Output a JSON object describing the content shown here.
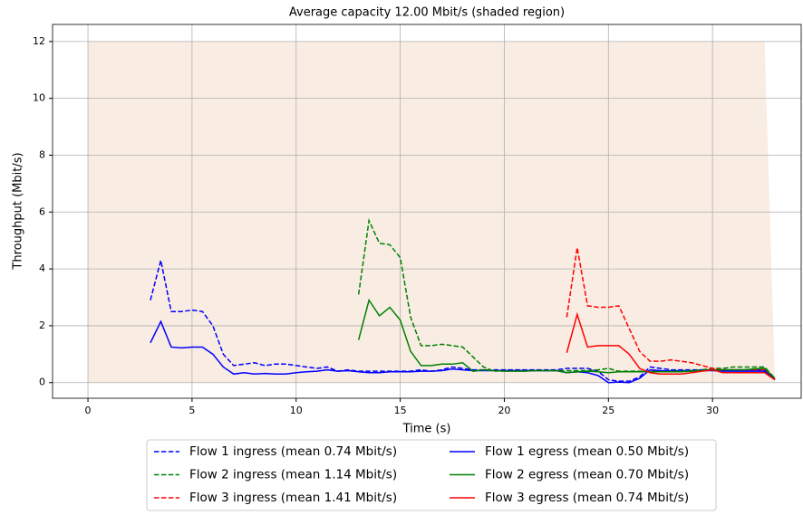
{
  "chart_data": {
    "type": "line",
    "title": "Average capacity 12.00 Mbit/s (shaded region)",
    "xlabel": "Time (s)",
    "ylabel": "Throughput (Mbit/s)",
    "xlim": [
      -1.7,
      34.26
    ],
    "ylim": [
      -0.55,
      12.6
    ],
    "xticks": [
      0,
      5,
      10,
      15,
      20,
      25,
      30
    ],
    "yticks": [
      0,
      2,
      4,
      6,
      8,
      10,
      12
    ],
    "grid": true,
    "legend": "below",
    "shaded_region": {
      "color": "#f9ece2",
      "x": [
        0,
        32.5,
        33
      ],
      "values": [
        12,
        12,
        0
      ]
    },
    "series": [
      {
        "name": "Flow 1 ingress (mean 0.74 Mbit/s)",
        "color": "blue",
        "dashed": true,
        "x": [
          3,
          3.5,
          4,
          4.5,
          5,
          5.5,
          6,
          6.5,
          7,
          7.5,
          8,
          8.5,
          9,
          9.5,
          10,
          10.5,
          11,
          11.5,
          12,
          12.5,
          13,
          13.5,
          14,
          14.5,
          15,
          15.5,
          16,
          16.5,
          17,
          17.5,
          18,
          18.5,
          19,
          19.5,
          20,
          20.5,
          21,
          21.5,
          22,
          22.5,
          23,
          23.5,
          24,
          24.5,
          25,
          25.5,
          26,
          26.5,
          27,
          27.5,
          28,
          28.5,
          29,
          29.5,
          30,
          30.5,
          31,
          31.5,
          32,
          32.5,
          33
        ],
        "values": [
          2.9,
          4.3,
          2.5,
          2.5,
          2.55,
          2.5,
          2.0,
          1.0,
          0.6,
          0.65,
          0.7,
          0.6,
          0.65,
          0.65,
          0.6,
          0.55,
          0.5,
          0.55,
          0.4,
          0.45,
          0.4,
          0.4,
          0.4,
          0.4,
          0.4,
          0.4,
          0.45,
          0.4,
          0.45,
          0.55,
          0.5,
          0.45,
          0.45,
          0.45,
          0.45,
          0.45,
          0.45,
          0.45,
          0.45,
          0.45,
          0.5,
          0.5,
          0.5,
          0.4,
          0.1,
          0.05,
          0.05,
          0.2,
          0.55,
          0.5,
          0.45,
          0.45,
          0.45,
          0.45,
          0.45,
          0.45,
          0.45,
          0.45,
          0.45,
          0.45,
          0.1
        ]
      },
      {
        "name": "Flow 2 ingress (mean 1.14 Mbit/s)",
        "color": "green",
        "dashed": true,
        "x": [
          13,
          13.5,
          14,
          14.5,
          15,
          15.5,
          16,
          16.5,
          17,
          17.5,
          18,
          18.5,
          19,
          19.5,
          20,
          20.5,
          21,
          21.5,
          22,
          22.5,
          23,
          23.5,
          24,
          24.5,
          25,
          25.5,
          26,
          26.5,
          27,
          27.5,
          28,
          28.5,
          29,
          29.5,
          30,
          30.5,
          31,
          31.5,
          32,
          32.5,
          33
        ],
        "values": [
          3.1,
          5.7,
          4.9,
          4.85,
          4.4,
          2.3,
          1.3,
          1.3,
          1.35,
          1.3,
          1.25,
          0.9,
          0.55,
          0.4,
          0.42,
          0.42,
          0.42,
          0.42,
          0.42,
          0.42,
          0.42,
          0.42,
          0.42,
          0.45,
          0.5,
          0.4,
          0.4,
          0.4,
          0.4,
          0.4,
          0.42,
          0.42,
          0.42,
          0.45,
          0.5,
          0.5,
          0.55,
          0.55,
          0.55,
          0.55,
          0.15
        ]
      },
      {
        "name": "Flow 3 ingress (mean 1.41 Mbit/s)",
        "color": "red",
        "dashed": true,
        "x": [
          23,
          23.5,
          24,
          24.5,
          25,
          25.5,
          26,
          26.5,
          27,
          27.5,
          28,
          28.5,
          29,
          29.5,
          30,
          30.5,
          31,
          31.5,
          32,
          32.5,
          33
        ],
        "values": [
          2.3,
          4.75,
          2.7,
          2.65,
          2.65,
          2.7,
          1.9,
          1.1,
          0.75,
          0.75,
          0.8,
          0.75,
          0.7,
          0.6,
          0.5,
          0.45,
          0.45,
          0.45,
          0.45,
          0.45,
          0.1
        ]
      },
      {
        "name": "Flow 1 egress (mean 0.50 Mbit/s)",
        "color": "blue",
        "dashed": false,
        "x": [
          3,
          3.5,
          4,
          4.5,
          5,
          5.5,
          6,
          6.5,
          7,
          7.5,
          8,
          8.5,
          9,
          9.5,
          10,
          10.5,
          11,
          11.5,
          12,
          12.5,
          13,
          13.5,
          14,
          14.5,
          15,
          15.5,
          16,
          16.5,
          17,
          17.5,
          18,
          18.5,
          19,
          19.5,
          20,
          20.5,
          21,
          21.5,
          22,
          22.5,
          23,
          23.5,
          24,
          24.5,
          25,
          25.5,
          26,
          26.5,
          27,
          27.5,
          28,
          28.5,
          29,
          29.5,
          30,
          30.5,
          31,
          31.5,
          32,
          32.5,
          33
        ],
        "values": [
          1.4,
          2.15,
          1.25,
          1.22,
          1.25,
          1.25,
          1.0,
          0.55,
          0.3,
          0.35,
          0.3,
          0.32,
          0.3,
          0.3,
          0.35,
          0.38,
          0.4,
          0.45,
          0.4,
          0.42,
          0.38,
          0.35,
          0.35,
          0.38,
          0.38,
          0.38,
          0.4,
          0.4,
          0.42,
          0.48,
          0.45,
          0.42,
          0.42,
          0.42,
          0.42,
          0.42,
          0.42,
          0.42,
          0.42,
          0.42,
          0.35,
          0.38,
          0.35,
          0.25,
          0.0,
          0.02,
          0.0,
          0.15,
          0.45,
          0.42,
          0.4,
          0.4,
          0.4,
          0.42,
          0.42,
          0.4,
          0.4,
          0.4,
          0.4,
          0.4,
          0.1
        ]
      },
      {
        "name": "Flow 2 egress (mean 0.70 Mbit/s)",
        "color": "green",
        "dashed": false,
        "x": [
          13,
          13.5,
          14,
          14.5,
          15,
          15.5,
          16,
          16.5,
          17,
          17.5,
          18,
          18.5,
          19,
          19.5,
          20,
          20.5,
          21,
          21.5,
          22,
          22.5,
          23,
          23.5,
          24,
          24.5,
          25,
          25.5,
          26,
          26.5,
          27,
          27.5,
          28,
          28.5,
          29,
          29.5,
          30,
          30.5,
          31,
          31.5,
          32,
          32.5,
          33
        ],
        "values": [
          1.5,
          2.9,
          2.35,
          2.65,
          2.2,
          1.1,
          0.6,
          0.6,
          0.65,
          0.65,
          0.7,
          0.4,
          0.45,
          0.42,
          0.4,
          0.4,
          0.4,
          0.42,
          0.42,
          0.42,
          0.35,
          0.38,
          0.4,
          0.38,
          0.35,
          0.38,
          0.38,
          0.38,
          0.38,
          0.38,
          0.38,
          0.38,
          0.4,
          0.42,
          0.45,
          0.45,
          0.45,
          0.45,
          0.48,
          0.5,
          0.15
        ]
      },
      {
        "name": "Flow 3 egress (mean 0.74 Mbit/s)",
        "color": "red",
        "dashed": false,
        "x": [
          23,
          23.5,
          24,
          24.5,
          25,
          25.5,
          26,
          26.5,
          27,
          27.5,
          28,
          28.5,
          29,
          29.5,
          30,
          30.5,
          31,
          31.5,
          32,
          32.5,
          33
        ],
        "values": [
          1.05,
          2.4,
          1.25,
          1.3,
          1.3,
          1.3,
          1.0,
          0.5,
          0.35,
          0.3,
          0.3,
          0.3,
          0.35,
          0.4,
          0.45,
          0.35,
          0.35,
          0.35,
          0.35,
          0.35,
          0.1
        ]
      }
    ]
  }
}
